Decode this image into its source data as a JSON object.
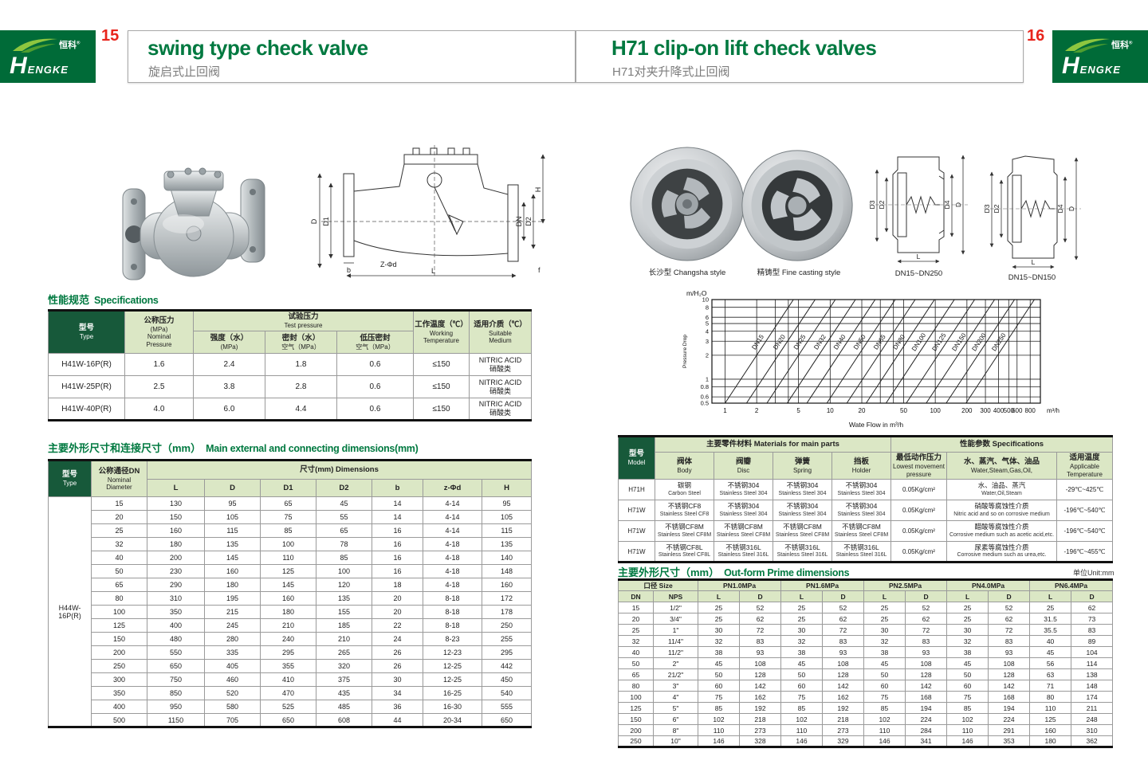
{
  "header": {
    "left_page_number": "15",
    "right_page_number": "16",
    "left_title": "swing type check valve",
    "left_subtitle": "旋启式止回阀",
    "right_title": "H71 clip-on lift check valves",
    "right_subtitle": "H71对夹升降式止回阀",
    "brand_cn": "恒科",
    "brand_reg": "®",
    "brand_en_h": "H",
    "brand_en_rest": "ENGKE"
  },
  "left_page": {
    "spec_section": {
      "heading_cn": "性能规范",
      "heading_en": "Specifications"
    },
    "spec_table": {
      "h_type_cn": "型号",
      "h_type_en": "Type",
      "h_nominal_cn": "公称压力",
      "h_nominal_sub": "(MPa)",
      "h_nominal_en1": "Nominal",
      "h_nominal_en2": "Pressure",
      "h_test_cn": "试验压力",
      "h_test_en": "Test pressure",
      "h_strength_cn": "强度（水）",
      "h_strength_sub": "(MPa)",
      "h_seal_cn": "密封（水）",
      "h_seal_sub": "空气（MPa）",
      "h_lowseal_cn": "低压密封",
      "h_lowseal_sub": "空气（MPa）",
      "h_temp_cn": "工作温度（℃）",
      "h_temp_en1": "Working",
      "h_temp_en2": "Temperature",
      "h_medium_cn": "适用介质（℃）",
      "h_medium_en1": "Suitable",
      "h_medium_en2": "Medium",
      "rows": [
        [
          "H41W-16P(R)",
          "1.6",
          "2.4",
          "1.8",
          "0.6",
          "≤150",
          "NITRIC ACID",
          "硝酸类"
        ],
        [
          "H41W-25P(R)",
          "2.5",
          "3.8",
          "2.8",
          "0.6",
          "≤150",
          "NITRIC ACID",
          "硝酸类"
        ],
        [
          "H41W-40P(R)",
          "4.0",
          "6.0",
          "4.4",
          "0.6",
          "≤150",
          "NITRIC ACID",
          "硝酸类"
        ]
      ]
    },
    "dim_section": {
      "heading_cn": "主要外形尺寸和连接尺寸（mm）",
      "heading_en": "Main external and connecting dimensions(mm)"
    },
    "dim_table": {
      "h_type_cn": "型号",
      "h_type_en": "Type",
      "h_dn_cn": "公称通径DN",
      "h_dn_en1": "Nominal",
      "h_dn_en2": "Diameter",
      "h_dims": "尺寸(mm) Dimensions",
      "cols": [
        "L",
        "D",
        "D1",
        "D2",
        "b",
        "z-Φd",
        "H"
      ],
      "type_label": "H44W-16P(R)",
      "rows": [
        [
          "15",
          "130",
          "95",
          "65",
          "45",
          "14",
          "4-14",
          "95"
        ],
        [
          "20",
          "150",
          "105",
          "75",
          "55",
          "14",
          "4-14",
          "105"
        ],
        [
          "25",
          "160",
          "115",
          "85",
          "65",
          "16",
          "4-14",
          "115"
        ],
        [
          "32",
          "180",
          "135",
          "100",
          "78",
          "16",
          "4-18",
          "135"
        ],
        [
          "40",
          "200",
          "145",
          "110",
          "85",
          "16",
          "4-18",
          "140"
        ],
        [
          "50",
          "230",
          "160",
          "125",
          "100",
          "16",
          "4-18",
          "148"
        ],
        [
          "65",
          "290",
          "180",
          "145",
          "120",
          "18",
          "4-18",
          "160"
        ],
        [
          "80",
          "310",
          "195",
          "160",
          "135",
          "20",
          "8-18",
          "172"
        ],
        [
          "100",
          "350",
          "215",
          "180",
          "155",
          "20",
          "8-18",
          "178"
        ],
        [
          "125",
          "400",
          "245",
          "210",
          "185",
          "22",
          "8-18",
          "250"
        ],
        [
          "150",
          "480",
          "280",
          "240",
          "210",
          "24",
          "8-23",
          "255"
        ],
        [
          "200",
          "550",
          "335",
          "295",
          "265",
          "26",
          "12-23",
          "295"
        ],
        [
          "250",
          "650",
          "405",
          "355",
          "320",
          "26",
          "12-25",
          "442"
        ],
        [
          "300",
          "750",
          "460",
          "410",
          "375",
          "30",
          "12-25",
          "450"
        ],
        [
          "350",
          "850",
          "520",
          "470",
          "435",
          "34",
          "16-25",
          "540"
        ],
        [
          "400",
          "950",
          "580",
          "525",
          "485",
          "36",
          "16-30",
          "555"
        ],
        [
          "500",
          "1150",
          "705",
          "650",
          "608",
          "44",
          "20-34",
          "650"
        ]
      ]
    },
    "drawing_labels": {
      "D": "D",
      "D1": "D1",
      "H": "H",
      "DN": "DN",
      "D2": "D2",
      "ZPhid": "Z-Φd",
      "b": "b",
      "L": "L",
      "f": "f"
    }
  },
  "right_page": {
    "photo_captions": [
      "长沙型 Changsha style",
      "精铸型 Fine casting style"
    ],
    "drawing_captions": [
      "DN15~DN250",
      "DN15~DN150"
    ],
    "drawing_labels": {
      "D3": "D3",
      "D2": "D2",
      "D4": "D4",
      "D": "D",
      "L": "L"
    },
    "materials_table": {
      "h_model_cn": "型号",
      "h_model_en": "Model",
      "h_materials": "主要零件材料 Materials for main parts",
      "h_specs": "性能参数 Specifications",
      "h_body_cn": "阀体",
      "h_body_en": "Body",
      "h_disc_cn": "阀瓣",
      "h_disc_en": "Disc",
      "h_spring_cn": "弹簧",
      "h_spring_en": "Spring",
      "h_holder_cn": "挡板",
      "h_holder_en": "Holder",
      "h_pressure_cn": "最低动作压力",
      "h_pressure_en1": "Lowest movement",
      "h_pressure_en2": "pressure",
      "h_medium_cn": "水、蒸汽、气体、油品",
      "h_medium_en": "Water,Steam,Gas,Oil,",
      "h_temp_cn": "适用温度",
      "h_temp_en1": "Applicable",
      "h_temp_en2": "Temperature",
      "rows": [
        [
          "H71H",
          "碳钢",
          "Carbon Steel",
          "不锈钢304",
          "Stainless Steel 304",
          "不锈钢304",
          "Stainless Steel 304",
          "不锈钢304",
          "Stainless Steel 304",
          "0.05Kg/cm²",
          "水、油品、蒸汽",
          "Water,Oil,Steam",
          "-29℃~425℃"
        ],
        [
          "H71W",
          "不锈钢CF8",
          "Stainless Steel CF8",
          "不锈钢304",
          "Stainless Steel 304",
          "不锈钢304",
          "Stainless Steel 304",
          "不锈钢304",
          "Stainless Steel 304",
          "0.05Kg/cm²",
          "硝酸等腐蚀性介质",
          "Nitric acid and so on corrosive medium",
          "-196℃~540℃"
        ],
        [
          "H71W",
          "不锈钢CF8M",
          "Stainless Steel CF8M",
          "不锈钢CF8M",
          "Stainless Steel CF8M",
          "不锈钢CF8M",
          "Stainless Steel CF8M",
          "不锈钢CF8M",
          "Stainless Steel CF8M",
          "0.05Kg/cm²",
          "醋酸等腐蚀性介质",
          "Corrosive medium such as acetic acid,etc.",
          "-196℃~540℃"
        ],
        [
          "H71W",
          "不锈钢CF8L",
          "Stainless Steel CF8L",
          "不锈钢316L",
          "Stainless Steel 316L",
          "不锈钢316L",
          "Stainless Steel 316L",
          "不锈钢316L",
          "Stainless Steel 316L",
          "0.05Kg/cm²",
          "尿素等腐蚀性介质",
          "Corrosive medium such as urea,etc.",
          "-196℃~455℃"
        ]
      ]
    },
    "outform_section": {
      "heading_cn": "主要外形尺寸（mm）",
      "heading_en": "Out-form Prime dimensions",
      "unit": "单位Unit:mm"
    },
    "outform_table": {
      "h_size": "口径 Size",
      "h_dn": "DN",
      "h_nps": "NPS",
      "h_pn": [
        "PN1.0MPa",
        "PN1.6MPa",
        "PN2.5MPa",
        "PN4.0MPa",
        "PN6.4MPa"
      ],
      "h_l": "L",
      "h_d": "D",
      "rows": [
        [
          "15",
          "1/2\"",
          "25",
          "52",
          "25",
          "52",
          "25",
          "52",
          "25",
          "52",
          "25",
          "62"
        ],
        [
          "20",
          "3/4\"",
          "25",
          "62",
          "25",
          "62",
          "25",
          "62",
          "25",
          "62",
          "31.5",
          "73"
        ],
        [
          "25",
          "1\"",
          "30",
          "72",
          "30",
          "72",
          "30",
          "72",
          "30",
          "72",
          "35.5",
          "83"
        ],
        [
          "32",
          "11/4\"",
          "32",
          "83",
          "32",
          "83",
          "32",
          "83",
          "32",
          "83",
          "40",
          "89"
        ],
        [
          "40",
          "11/2\"",
          "38",
          "93",
          "38",
          "93",
          "38",
          "93",
          "38",
          "93",
          "45",
          "104"
        ],
        [
          "50",
          "2\"",
          "45",
          "108",
          "45",
          "108",
          "45",
          "108",
          "45",
          "108",
          "56",
          "114"
        ],
        [
          "65",
          "21/2\"",
          "50",
          "128",
          "50",
          "128",
          "50",
          "128",
          "50",
          "128",
          "63",
          "138"
        ],
        [
          "80",
          "3\"",
          "60",
          "142",
          "60",
          "142",
          "60",
          "142",
          "60",
          "142",
          "71",
          "148"
        ],
        [
          "100",
          "4\"",
          "75",
          "162",
          "75",
          "162",
          "75",
          "168",
          "75",
          "168",
          "80",
          "174"
        ],
        [
          "125",
          "5\"",
          "85",
          "192",
          "85",
          "192",
          "85",
          "194",
          "85",
          "194",
          "110",
          "211"
        ],
        [
          "150",
          "6\"",
          "102",
          "218",
          "102",
          "218",
          "102",
          "224",
          "102",
          "224",
          "125",
          "248"
        ],
        [
          "200",
          "8\"",
          "110",
          "273",
          "110",
          "273",
          "110",
          "284",
          "110",
          "291",
          "160",
          "310"
        ],
        [
          "250",
          "10\"",
          "146",
          "328",
          "146",
          "329",
          "146",
          "341",
          "146",
          "353",
          "180",
          "362"
        ]
      ]
    }
  },
  "chart_data": {
    "type": "line",
    "title": "",
    "xlabel": "Wate Flow in m³/h",
    "ylabel": "Pressure Drop",
    "y_unit": "m/H₂O",
    "x_unit": "m³/h",
    "x_scale": "log",
    "y_scale": "log",
    "xlim": [
      0.75,
      1000
    ],
    "ylim": [
      0.5,
      10
    ],
    "x_ticks": [
      1,
      2,
      5,
      10,
      20,
      50,
      100,
      200,
      300,
      400,
      500,
      600,
      800
    ],
    "x_gridlines": [
      1,
      2,
      3,
      4,
      5,
      10,
      20,
      30,
      40,
      50,
      100,
      200,
      300,
      400,
      500,
      600,
      800
    ],
    "y_ticks": [
      0.5,
      0.6,
      0.8,
      1,
      2,
      3,
      4,
      5,
      6,
      8,
      10
    ],
    "grid": true,
    "legend": "labels-on-lines",
    "series": [
      {
        "name": "DN15",
        "points": [
          [
            1.0,
            0.5
          ],
          [
            4.47,
            10
          ]
        ]
      },
      {
        "name": "DN20",
        "points": [
          [
            1.6,
            0.5
          ],
          [
            7.2,
            10
          ]
        ]
      },
      {
        "name": "DN25",
        "points": [
          [
            2.5,
            0.5
          ],
          [
            11.2,
            10
          ]
        ]
      },
      {
        "name": "DN32",
        "points": [
          [
            3.9,
            0.5
          ],
          [
            17.4,
            10
          ]
        ]
      },
      {
        "name": "DN40",
        "points": [
          [
            6.0,
            0.5
          ],
          [
            26.8,
            10
          ]
        ]
      },
      {
        "name": "DN50",
        "points": [
          [
            9.3,
            0.5
          ],
          [
            41.6,
            10
          ]
        ]
      },
      {
        "name": "DN65",
        "points": [
          [
            14.4,
            0.5
          ],
          [
            64.4,
            10
          ]
        ]
      },
      {
        "name": "DN80",
        "points": [
          [
            22,
            0.5
          ],
          [
            98.4,
            10
          ]
        ]
      },
      {
        "name": "DN100",
        "points": [
          [
            34,
            0.5
          ],
          [
            152,
            10
          ]
        ]
      },
      {
        "name": "DN125",
        "points": [
          [
            53,
            0.5
          ],
          [
            237,
            10
          ]
        ]
      },
      {
        "name": "DN150",
        "points": [
          [
            82,
            0.5
          ],
          [
            367,
            10
          ]
        ]
      },
      {
        "name": "DN200",
        "points": [
          [
            127,
            0.5
          ],
          [
            568,
            10
          ]
        ]
      },
      {
        "name": "DN250",
        "points": [
          [
            196,
            0.5
          ],
          [
            877,
            10
          ]
        ]
      }
    ]
  }
}
